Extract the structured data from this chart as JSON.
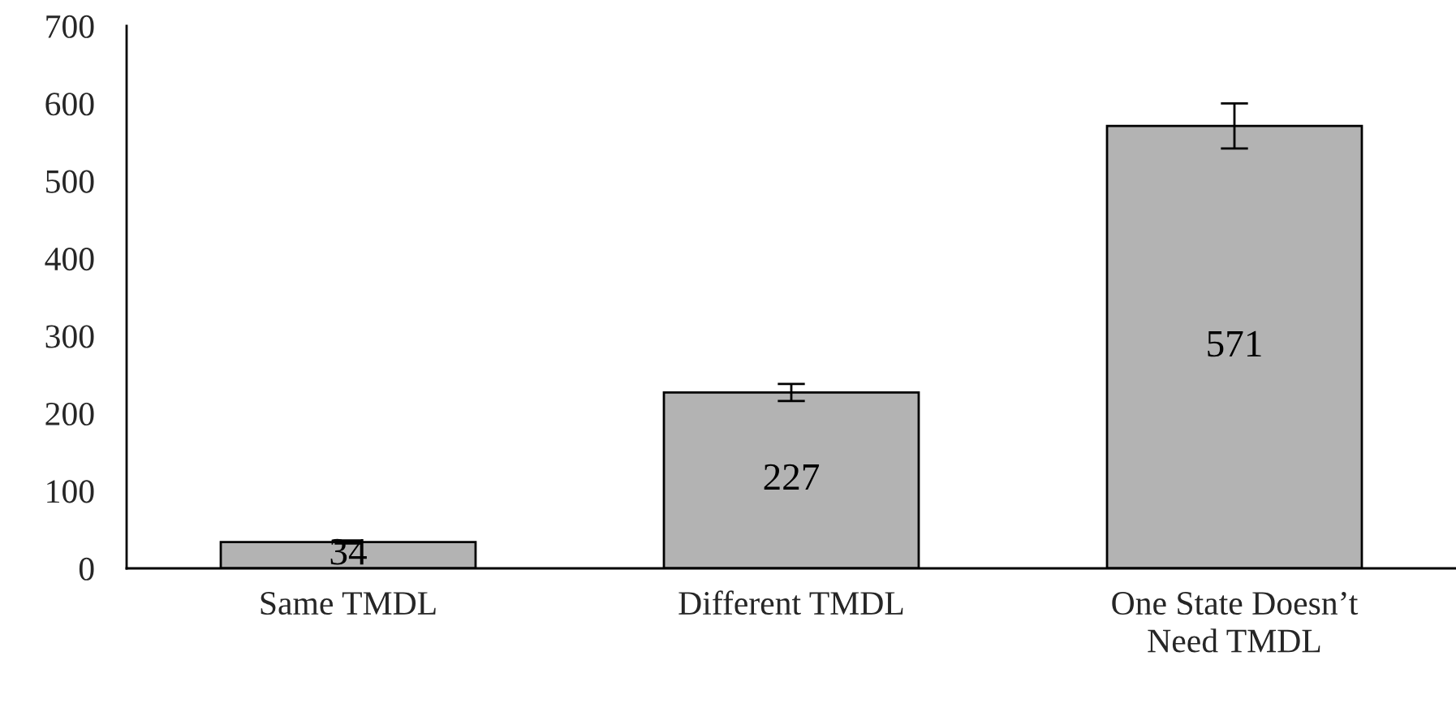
{
  "chart_data": {
    "type": "bar",
    "categories": [
      "Same TMDL",
      "Different TMDL",
      "One State Doesn’t\nNeed TMDL"
    ],
    "values": [
      34,
      227,
      571
    ],
    "errors": [
      2,
      11,
      29
    ],
    "color": "#b3b3b3",
    "ylim": [
      0,
      700
    ],
    "yticks": [
      0,
      100,
      200,
      300,
      400,
      500,
      600,
      700
    ],
    "data_labels": true,
    "grid": false
  }
}
